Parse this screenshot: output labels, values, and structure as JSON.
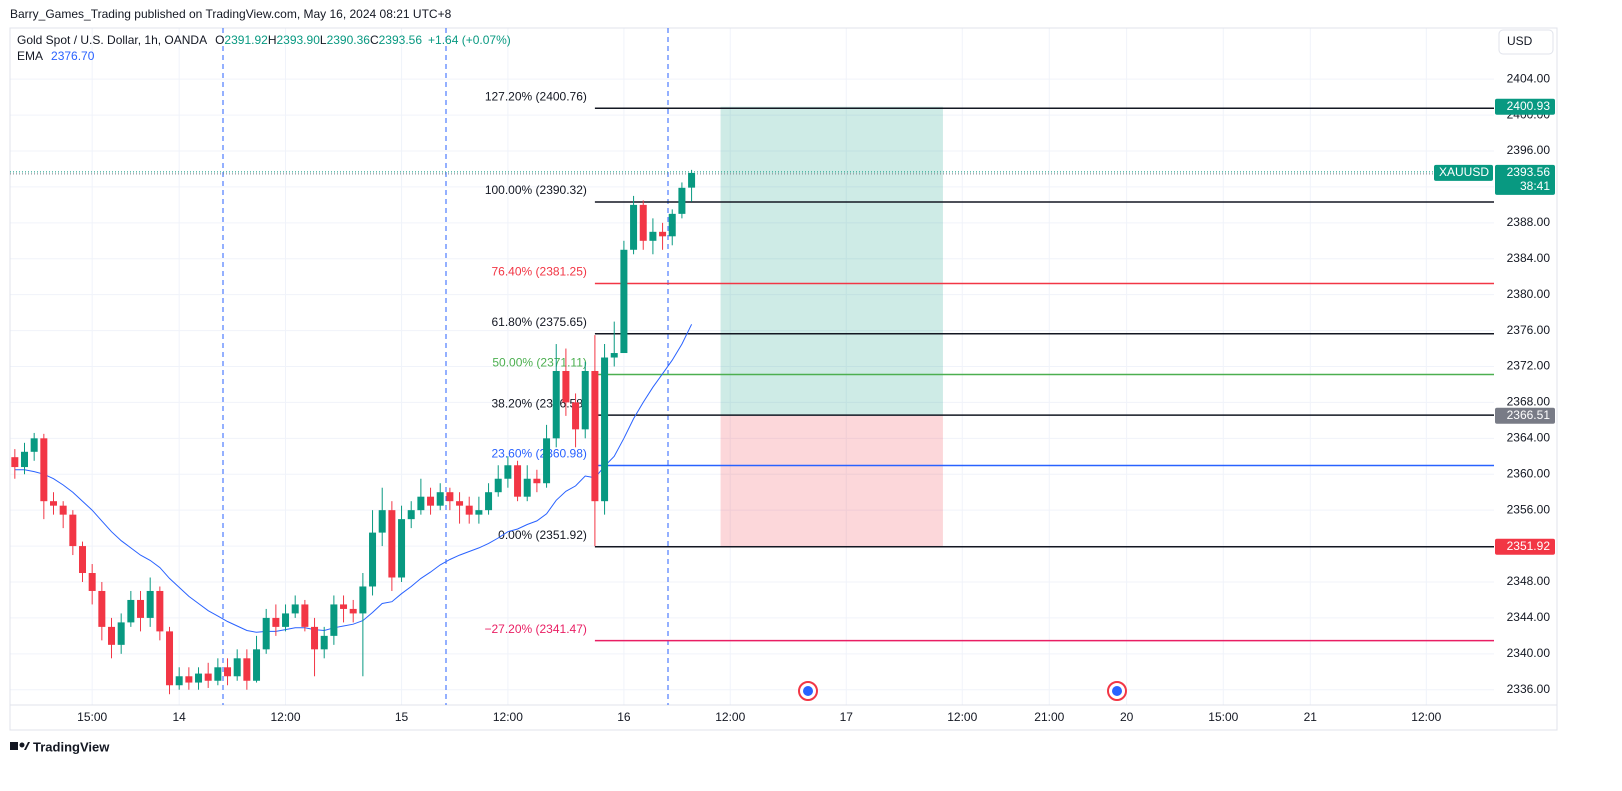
{
  "header": {
    "publisher": "Barry_Games_Trading published on TradingView.com, May 16, 2024 08:21 UTC+8",
    "currency": "USD",
    "brand": "TradingView"
  },
  "chart_data": {
    "type": "candlestick",
    "title": "Gold Spot / U.S. Dollar, 1h, OANDA",
    "quote": [
      {
        "key": "O",
        "value": "2391.92"
      },
      {
        "key": "H",
        "value": "2393.90"
      },
      {
        "key": "L",
        "value": "2390.36"
      },
      {
        "key": "C",
        "value": "2393.56"
      }
    ],
    "change": "+1.64 (+0.07%)",
    "symbol": "XAUUSD",
    "countdown": "38:41",
    "up_color": "#089981",
    "down_color": "#f23645",
    "candles": {
      "open": [
        2361.9,
        2360.8,
        2362.5,
        2364.0,
        2357.0,
        2356.5,
        2355.5,
        2352.0,
        2349.0,
        2347.0,
        2343.0,
        2341.0,
        2343.5,
        2346.0,
        2344.0,
        2347.0,
        2342.5,
        2336.5,
        2337.5,
        2336.8,
        2337.8,
        2337.0,
        2338.5,
        2337.5,
        2339.5,
        2337.0,
        2340.5,
        2344.0,
        2343.0,
        2344.5,
        2345.5,
        2343.0,
        2340.5,
        2342.0,
        2345.5,
        2345.0,
        2344.5,
        2347.5,
        2353.5,
        2356.0,
        2348.5,
        2355.0,
        2356.0,
        2357.5,
        2356.5,
        2358.0,
        2357.0,
        2356.5,
        2355.5,
        2356.0,
        2358.0,
        2359.5,
        2361.0,
        2357.5,
        2359.5,
        2359.0,
        2364.0,
        2371.5,
        2368.0,
        2365.0,
        2371.5,
        2357.0,
        2373.0,
        2373.5,
        2385.0,
        2390.0,
        2386.0,
        2387.0,
        2386.5,
        2389.0,
        2391.92
      ],
      "high": [
        2362.8,
        2363.5,
        2364.6,
        2364.5,
        2358,
        2357,
        2356,
        2352.5,
        2350,
        2348,
        2344,
        2344.5,
        2347,
        2347,
        2348.5,
        2347.5,
        2343,
        2338.5,
        2338.5,
        2338.5,
        2339,
        2339.5,
        2339.5,
        2340.5,
        2340.5,
        2342,
        2345,
        2345.5,
        2345.5,
        2346.5,
        2346,
        2344,
        2343,
        2346.5,
        2346.5,
        2346,
        2349,
        2356,
        2358.5,
        2357,
        2356.5,
        2357,
        2359.5,
        2358.5,
        2359,
        2358.5,
        2358,
        2357.5,
        2357.5,
        2359,
        2361,
        2362,
        2361.5,
        2361,
        2360.5,
        2365.5,
        2374.5,
        2374,
        2369,
        2372.5,
        2375.5,
        2374.5,
        2377,
        2386,
        2391,
        2390.5,
        2388.5,
        2388,
        2389.5,
        2392.5,
        2393.9
      ],
      "low": [
        2359.5,
        2360,
        2361.5,
        2355,
        2355.5,
        2354,
        2351,
        2348,
        2345.5,
        2341.5,
        2339.5,
        2340,
        2343,
        2342.5,
        2343,
        2341.5,
        2335.5,
        2336,
        2336,
        2336,
        2336.2,
        2336.5,
        2336.5,
        2337,
        2336,
        2336.8,
        2340,
        2342,
        2342.5,
        2344,
        2342.5,
        2337.5,
        2339.5,
        2341,
        2343.5,
        2343.5,
        2337.5,
        2346.5,
        2352,
        2347,
        2348,
        2354,
        2355.5,
        2355.5,
        2356,
        2356,
        2354.5,
        2354.5,
        2354.5,
        2355.5,
        2357.5,
        2358.5,
        2357,
        2357,
        2358,
        2358.5,
        2363,
        2366.5,
        2363,
        2364,
        2352,
        2355.5,
        2372,
        2376.5,
        2384.5,
        2385,
        2384.5,
        2385,
        2385.5,
        2388.5,
        2390.36
      ],
      "close": [
        2360.8,
        2362.5,
        2364.0,
        2357.0,
        2356.5,
        2355.5,
        2352.0,
        2349.0,
        2347.0,
        2343.0,
        2341.0,
        2343.5,
        2346.0,
        2344.0,
        2347.0,
        2342.5,
        2336.5,
        2337.5,
        2336.8,
        2337.8,
        2337.0,
        2338.5,
        2337.5,
        2339.5,
        2337.0,
        2340.5,
        2344.0,
        2343.0,
        2344.5,
        2345.5,
        2343.0,
        2340.5,
        2342.0,
        2345.5,
        2345.0,
        2344.5,
        2347.5,
        2353.5,
        2356.0,
        2348.5,
        2355.0,
        2356.0,
        2357.5,
        2356.5,
        2358.0,
        2357.0,
        2356.5,
        2355.5,
        2356.0,
        2358.0,
        2359.5,
        2361.0,
        2357.5,
        2359.5,
        2359.0,
        2364.0,
        2371.5,
        2368.0,
        2365.0,
        2371.5,
        2357.0,
        2373.0,
        2373.5,
        2385.0,
        2390.0,
        2386.0,
        2387.0,
        2386.5,
        2389.0,
        2391.9,
        2393.56
      ]
    },
    "ema": {
      "name": "EMA",
      "label": "2376.70",
      "color": "#2962ff",
      "values": [
        2360.5,
        2360.5,
        2360.3,
        2360.0,
        2359.5,
        2358.8,
        2358.0,
        2357.0,
        2356.0,
        2354.8,
        2353.6,
        2352.6,
        2351.8,
        2351.0,
        2350.4,
        2349.6,
        2348.4,
        2347.4,
        2346.4,
        2345.6,
        2344.8,
        2344.2,
        2343.6,
        2343.1,
        2342.6,
        2342.4,
        2342.5,
        2342.5,
        2342.7,
        2342.9,
        2342.9,
        2342.7,
        2342.6,
        2342.9,
        2343.1,
        2343.3,
        2343.7,
        2344.6,
        2345.6,
        2345.8,
        2346.7,
        2347.5,
        2348.4,
        2349.1,
        2349.9,
        2350.5,
        2351.0,
        2351.4,
        2351.8,
        2352.3,
        2352.9,
        2353.6,
        2353.9,
        2354.4,
        2354.8,
        2355.6,
        2357.1,
        2358.1,
        2358.7,
        2359.8,
        2359.6,
        2360.9,
        2362.0,
        2364.0,
        2366.2,
        2368.0,
        2369.7,
        2371.2,
        2372.7,
        2374.5,
        2376.7
      ]
    },
    "fib_x": 60,
    "fib_levels": [
      {
        "label": "127.20% (2400.76)",
        "value": 2400.76,
        "color": "#131722"
      },
      {
        "label": "100.00% (2390.32)",
        "value": 2390.32,
        "color": "#131722"
      },
      {
        "label": "76.40% (2381.25)",
        "value": 2381.25,
        "color": "#f23645"
      },
      {
        "label": "61.80% (2375.65)",
        "value": 2375.65,
        "color": "#131722"
      },
      {
        "label": "50.00% (2371.11)",
        "value": 2371.11,
        "color": "#4caf50"
      },
      {
        "label": "38.20% (2366.58)",
        "value": 2366.58,
        "color": "#131722"
      },
      {
        "label": "23.60% (2360.98)",
        "value": 2360.98,
        "color": "#2962ff"
      },
      {
        "label": "0.00% (2351.92)",
        "value": 2351.92,
        "color": "#131722"
      },
      {
        "label": "−27.20% (2341.47)",
        "value": 2341.47,
        "color": "#e91e63"
      }
    ],
    "position": {
      "x": [
        73,
        96
      ],
      "target": 2400.93,
      "entry": 2366.51,
      "stop": 2351.92
    },
    "xlim": [
      -0.5,
      153
    ],
    "xticks": [
      {
        "value": 8,
        "label": "15:00"
      },
      {
        "value": 17,
        "label": "14"
      },
      {
        "value": 28,
        "label": "12:00"
      },
      {
        "value": 40,
        "label": "15"
      },
      {
        "value": 51,
        "label": "12:00"
      },
      {
        "value": 63,
        "label": "16"
      },
      {
        "value": 74,
        "label": "12:00"
      },
      {
        "value": 86,
        "label": "17"
      },
      {
        "value": 98,
        "label": "12:00"
      },
      {
        "value": 107,
        "label": "21:00"
      },
      {
        "value": 115,
        "label": "20"
      },
      {
        "value": 125,
        "label": "15:00"
      },
      {
        "value": 134,
        "label": "21"
      },
      {
        "value": 146,
        "label": "12:00"
      }
    ],
    "ylim": [
      2334.3,
      2409.7
    ],
    "yticks": [
      {
        "value": 2336,
        "label": "2336.00"
      },
      {
        "value": 2340,
        "label": "2340.00"
      },
      {
        "value": 2344,
        "label": "2344.00"
      },
      {
        "value": 2348,
        "label": "2348.00"
      },
      {
        "value": 2352,
        "label": "2352.00"
      },
      {
        "value": 2356,
        "label": "2356.00"
      },
      {
        "value": 2360,
        "label": "2360.00"
      },
      {
        "value": 2364,
        "label": "2364.00"
      },
      {
        "value": 2368,
        "label": "2368.00"
      },
      {
        "value": 2372,
        "label": "2372.00"
      },
      {
        "value": 2376,
        "label": "2376.00"
      },
      {
        "value": 2380,
        "label": "2380.00"
      },
      {
        "value": 2384,
        "label": "2384.00"
      },
      {
        "value": 2388,
        "label": "2388.00"
      },
      {
        "value": 2392,
        "label": "2392.00"
      },
      {
        "value": 2396,
        "label": "2396.00"
      },
      {
        "value": 2400,
        "label": "2400.00"
      },
      {
        "value": 2404,
        "label": "2404.00"
      }
    ],
    "grid": true
  }
}
